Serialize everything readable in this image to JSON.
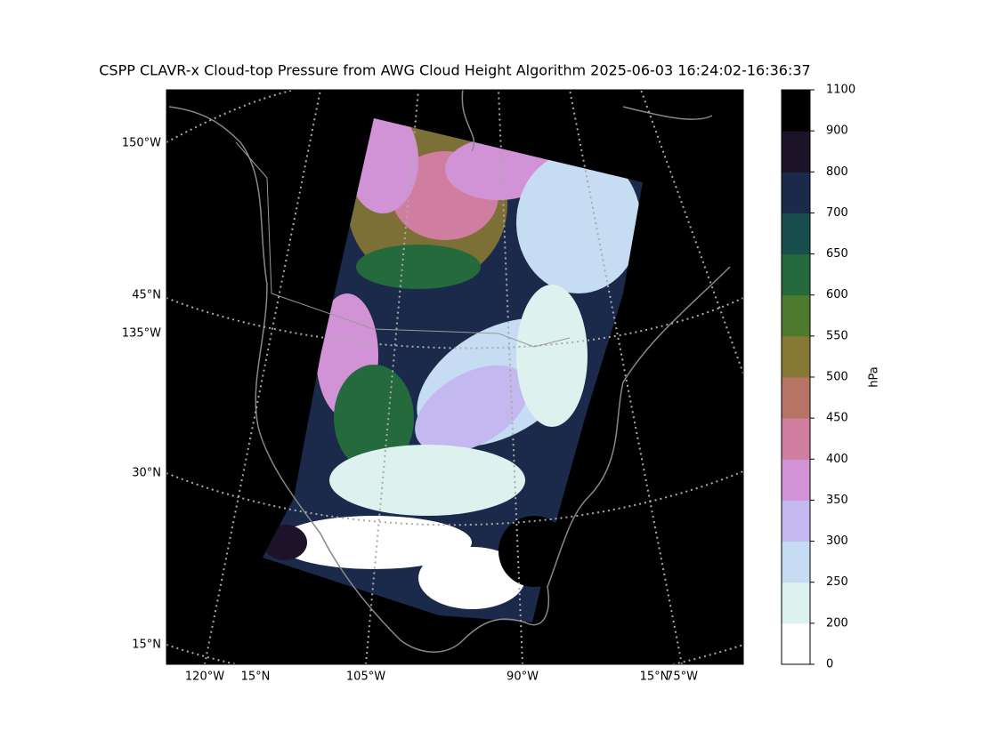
{
  "title": "CSPP CLAVR-x Cloud-top Pressure from AWG Cloud Height Algorithm 2025-06-03 16:24:02-16:36:37",
  "map": {
    "left_labels": [
      "150°W",
      "45°N",
      "135°W",
      "30°N",
      "15°N"
    ],
    "bottom_labels": [
      "120°W",
      "15°N",
      "105°W",
      "90°W",
      "15°N",
      "75°W"
    ]
  },
  "colorbar": {
    "label": "hPa",
    "ticks": [
      0,
      200,
      250,
      300,
      350,
      400,
      450,
      500,
      550,
      600,
      650,
      700,
      800,
      900,
      1100
    ],
    "colors": [
      "#ffffff",
      "#ddf1ee",
      "#c6dcf2",
      "#c3b8ef",
      "#d193d6",
      "#d07ea0",
      "#b77364",
      "#877835",
      "#4e7a30",
      "#246a3c",
      "#184e4b",
      "#1b2a4a",
      "#1c1328",
      "#000000"
    ]
  }
}
